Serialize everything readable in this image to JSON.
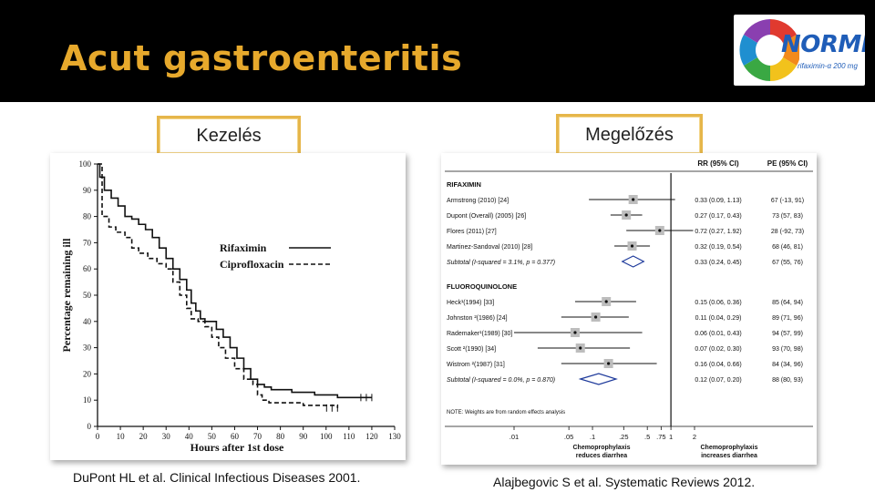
{
  "slide": {
    "title": "Acut gastroenteritis",
    "logo": {
      "name": "NORMIX",
      "subtitle": "rifaximin-α 200 mg",
      "icon": "normix-logo-icon"
    },
    "left_label": "Kezelés",
    "right_label": "Megelőzés",
    "left_citation": "DuPont HL et al. Clinical Infectious Diseases 2001.",
    "right_citation": "Alajbegovic S et al. Systematic Reviews 2012.",
    "colors": {
      "background_top": "#000000",
      "title": "#e7a92c",
      "label_border": "#e6b64a"
    }
  },
  "chart_data": [
    {
      "type": "line",
      "title": "",
      "xlabel": "Hours after 1st dose",
      "ylabel": "Percentage remaining ill",
      "xlim": [
        0,
        130
      ],
      "ylim": [
        0,
        100
      ],
      "xticks": [
        0,
        10,
        20,
        30,
        40,
        50,
        60,
        70,
        80,
        90,
        100,
        110,
        120,
        130
      ],
      "yticks": [
        0,
        10,
        20,
        30,
        40,
        50,
        60,
        70,
        80,
        90,
        100
      ],
      "legend_position": "center-right",
      "series": [
        {
          "name": "Rifaximin",
          "style": "solid",
          "points": [
            [
              0,
              100
            ],
            [
              1,
              95
            ],
            [
              3,
              90
            ],
            [
              6,
              87
            ],
            [
              9,
              84
            ],
            [
              12,
              80
            ],
            [
              15,
              79
            ],
            [
              18,
              77
            ],
            [
              21,
              75
            ],
            [
              24,
              72
            ],
            [
              27,
              68
            ],
            [
              30,
              64
            ],
            [
              33,
              60
            ],
            [
              36,
              56
            ],
            [
              39,
              52
            ],
            [
              41,
              47
            ],
            [
              43,
              44
            ],
            [
              45,
              41
            ],
            [
              47,
              40
            ],
            [
              50,
              40
            ],
            [
              52,
              37
            ],
            [
              55,
              34
            ],
            [
              58,
              30
            ],
            [
              61,
              26
            ],
            [
              64,
              22
            ],
            [
              67,
              18
            ],
            [
              70,
              16
            ],
            [
              73,
              15
            ],
            [
              76,
              14
            ],
            [
              80,
              14
            ],
            [
              85,
              13
            ],
            [
              90,
              13
            ],
            [
              95,
              12
            ],
            [
              100,
              12
            ],
            [
              105,
              11
            ],
            [
              110,
              11
            ],
            [
              120,
              11
            ]
          ]
        },
        {
          "name": "Ciprofloxacin",
          "style": "dashed",
          "points": [
            [
              0,
              100
            ],
            [
              2,
              80
            ],
            [
              5,
              76
            ],
            [
              8,
              74
            ],
            [
              12,
              72
            ],
            [
              15,
              68
            ],
            [
              18,
              66
            ],
            [
              22,
              64
            ],
            [
              26,
              62
            ],
            [
              30,
              60
            ],
            [
              33,
              55
            ],
            [
              36,
              50
            ],
            [
              39,
              45
            ],
            [
              41,
              41
            ],
            [
              44,
              40
            ],
            [
              47,
              38
            ],
            [
              50,
              34
            ],
            [
              53,
              30
            ],
            [
              56,
              26
            ],
            [
              60,
              22
            ],
            [
              64,
              18
            ],
            [
              68,
              16
            ],
            [
              70,
              12
            ],
            [
              72,
              10
            ],
            [
              75,
              9
            ],
            [
              80,
              9
            ],
            [
              85,
              9
            ],
            [
              90,
              8
            ],
            [
              95,
              8
            ],
            [
              100,
              8
            ],
            [
              105,
              7
            ]
          ]
        }
      ]
    },
    {
      "type": "forest",
      "header_rr": "RR (95% CI)",
      "header_pe": "PE (95% CI)",
      "xscale": "log",
      "xlim": [
        0.01,
        2
      ],
      "xticks": [
        ".01",
        ".05",
        ".1",
        ".25",
        ".5",
        ".75",
        "1",
        "2"
      ],
      "xtick_values": [
        0.01,
        0.05,
        0.1,
        0.25,
        0.5,
        0.75,
        1,
        2
      ],
      "reference_line": 1,
      "left_caption": "Chemoprophylaxis reduces diarrhea",
      "right_caption": "Chemoprophylaxis increases diarrhea",
      "note": "NOTE: Weights are from random effects analysis",
      "groups": [
        {
          "name": "RIFAXIMIN",
          "studies": [
            {
              "label": "Armstrong (2010) [24]",
              "rr": 0.33,
              "lo": 0.09,
              "hi": 1.13,
              "rr_text": "0.33 (0.09, 1.13)",
              "pe_text": "67 (-13, 91)"
            },
            {
              "label": "Dupont (Overall) (2005) [26]",
              "rr": 0.27,
              "lo": 0.17,
              "hi": 0.43,
              "rr_text": "0.27 (0.17, 0.43)",
              "pe_text": "73 (57, 83)"
            },
            {
              "label": "Flores (2011) [27]",
              "rr": 0.72,
              "lo": 0.27,
              "hi": 1.92,
              "rr_text": "0.72 (0.27, 1.92)",
              "pe_text": "28 (-92, 73)"
            },
            {
              "label": "Martinez-Sandoval (2010) [28]",
              "rr": 0.32,
              "lo": 0.19,
              "hi": 0.54,
              "rr_text": "0.32 (0.19, 0.54)",
              "pe_text": "68 (46, 81)"
            }
          ],
          "subtotal": {
            "label": "Subtotal  (I-squared = 3.1%, p = 0.377)",
            "rr": 0.33,
            "lo": 0.24,
            "hi": 0.45,
            "rr_text": "0.33 (0.24, 0.45)",
            "pe_text": "67 (55, 76)"
          }
        },
        {
          "name": "FLUOROQUINOLONE",
          "studies": [
            {
              "label": "Heck¹(1994) [33]",
              "rr": 0.15,
              "lo": 0.06,
              "hi": 0.36,
              "rr_text": "0.15 (0.06, 0.36)",
              "pe_text": "85 (64, 94)"
            },
            {
              "label": "Johnston ²(1986) [24]",
              "rr": 0.11,
              "lo": 0.04,
              "hi": 0.29,
              "rr_text": "0.11 (0.04, 0.29)",
              "pe_text": "89 (71, 96)"
            },
            {
              "label": "Rademaker¹(1989) [30]",
              "rr": 0.06,
              "lo": 0.01,
              "hi": 0.43,
              "rr_text": "0.06 (0.01, 0.43)",
              "pe_text": "94 (57, 99)"
            },
            {
              "label": "Scott ²(1990) [34]",
              "rr": 0.07,
              "lo": 0.02,
              "hi": 0.3,
              "rr_text": "0.07 (0.02, 0.30)",
              "pe_text": "93 (70, 98)"
            },
            {
              "label": "Wistrom ²(1987) [31]",
              "rr": 0.16,
              "lo": 0.04,
              "hi": 0.66,
              "rr_text": "0.16 (0.04, 0.66)",
              "pe_text": "84 (34, 96)"
            }
          ],
          "subtotal": {
            "label": "Subtotal  (I-squared = 0.0%, p = 0.870)",
            "rr": 0.12,
            "lo": 0.07,
            "hi": 0.2,
            "rr_text": "0.12 (0.07, 0.20)",
            "pe_text": "88 (80, 93)"
          }
        }
      ]
    }
  ]
}
